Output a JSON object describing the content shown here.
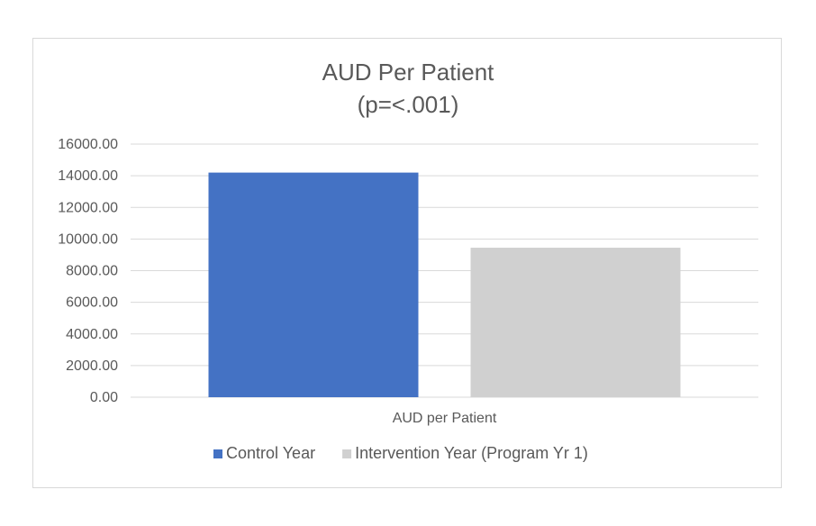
{
  "chart_data": {
    "type": "bar",
    "title": "AUD Per Patient",
    "subtitle": "(p=<.001)",
    "categories": [
      "AUD per Patient"
    ],
    "series": [
      {
        "name": "Control Year",
        "color": "#4472c4",
        "values": [
          14200
        ]
      },
      {
        "name": "Intervention Year (Program Yr 1)",
        "color": "#d0d0d0",
        "values": [
          9450
        ]
      }
    ],
    "yticks": [
      "0.00",
      "2000.00",
      "4000.00",
      "6000.00",
      "8000.00",
      "10000.00",
      "12000.00",
      "14000.00",
      "16000.00"
    ],
    "ylim": [
      0,
      16000
    ],
    "grid": true,
    "legend_position": "bottom",
    "gridline_color": "#d9d9d9"
  }
}
